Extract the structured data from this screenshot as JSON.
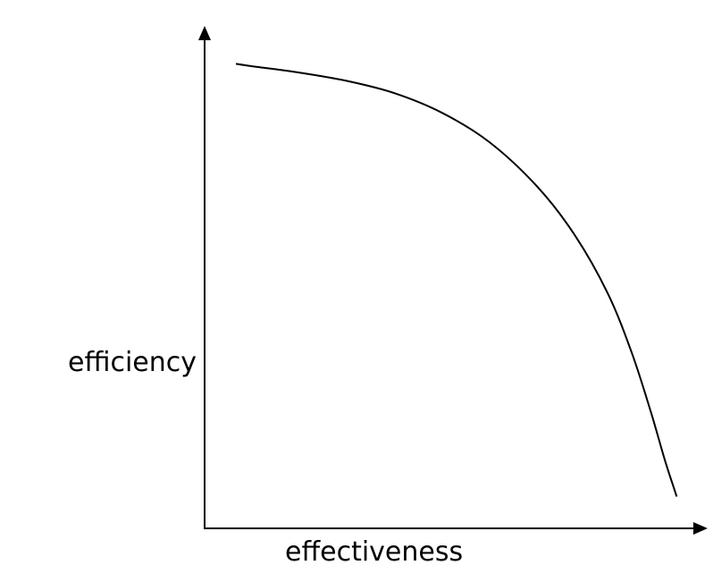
{
  "chart_data": {
    "type": "line",
    "xlabel": "effectiveness",
    "ylabel": "efficiency",
    "xlim": [
      0,
      1
    ],
    "ylim": [
      0,
      1
    ],
    "grid": false,
    "legend": false,
    "series": [
      {
        "x": [
          0.066,
          0.1,
          0.2,
          0.3,
          0.4,
          0.5,
          0.6,
          0.7,
          0.78,
          0.85,
          0.9,
          0.94,
          0.97,
          0.99,
          0.995
        ],
        "y": [
          0.95,
          0.945,
          0.932,
          0.915,
          0.89,
          0.85,
          0.79,
          0.7,
          0.6,
          0.48,
          0.36,
          0.24,
          0.14,
          0.08,
          0.065
        ]
      }
    ],
    "colors": {
      "line": "#000000",
      "axis": "#000000"
    }
  }
}
